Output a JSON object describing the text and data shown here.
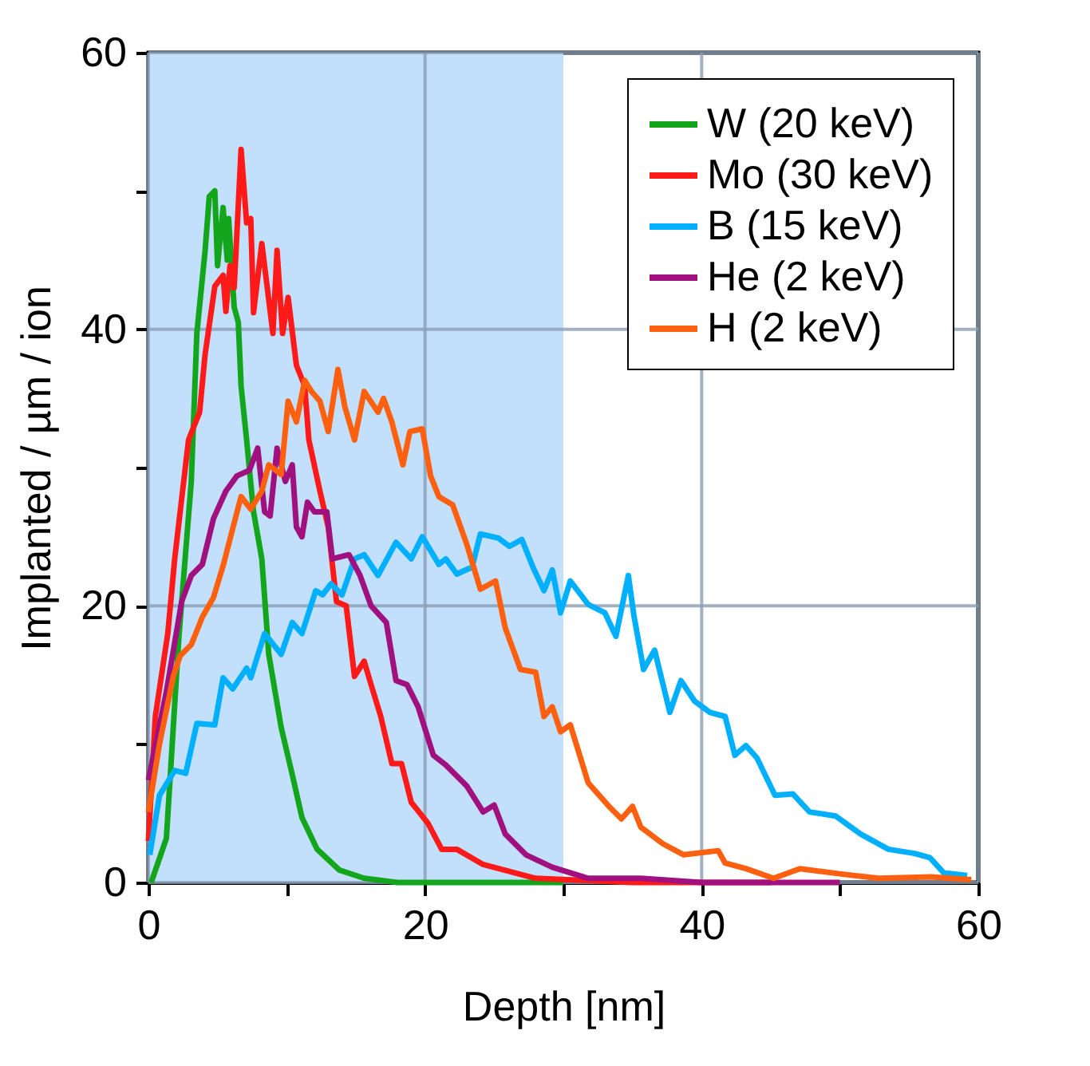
{
  "chart_data": {
    "type": "line",
    "xlabel": "Depth [nm]",
    "ylabel": "Implanted / µm / ion",
    "xlim": [
      0,
      60
    ],
    "ylim": [
      0,
      60
    ],
    "xticks": [
      0,
      {
        "value": 10,
        "label": null
      },
      20,
      {
        "value": 30,
        "label": null
      },
      40,
      {
        "value": 50,
        "label": null
      },
      60
    ],
    "yticks": [
      0,
      {
        "value": 10,
        "label": null
      },
      20,
      {
        "value": 30,
        "label": null
      },
      40,
      {
        "value": 50,
        "label": null
      },
      60
    ],
    "grid": true,
    "legend": "top right",
    "line_style": "solid",
    "marker": "none",
    "bands": [
      {
        "axis": "x",
        "from": 0,
        "to": 30,
        "label": null,
        "color": "#c2e0fc"
      }
    ],
    "series": [
      {
        "name": "W (20 keV)",
        "color": "#13a61c",
        "x": [
          0.2,
          1.3,
          2.2,
          3.1,
          3.5,
          4.1,
          4.4,
          4.8,
          5.0,
          5.4,
          5.7,
          5.8,
          6.2,
          6.5,
          6.7,
          7.1,
          7.6,
          8.2,
          8.7,
          9.6,
          10.4,
          11.1,
          12.2,
          13.8,
          15.6,
          18,
          22,
          30
        ],
        "values": [
          0,
          3.2,
          17.7,
          29,
          39.7,
          45.7,
          49.6,
          50,
          44.6,
          48.8,
          45,
          48,
          41.6,
          40.5,
          35.9,
          32,
          26.8,
          23.4,
          16.5,
          11.2,
          7.8,
          4.7,
          2.4,
          0.9,
          0.3,
          0,
          0,
          0
        ]
      },
      {
        "name": "Mo (30 keV)",
        "color": "#ff1a1a",
        "x": [
          0,
          0.5,
          1.4,
          1.9,
          2.9,
          3.7,
          4.1,
          4.8,
          5.4,
          5.6,
          5.9,
          6.2,
          6.7,
          7.1,
          7.4,
          7.6,
          8.2,
          9,
          9.3,
          9.7,
          10.1,
          10.7,
          11.3,
          11.6,
          12.4,
          13,
          13.6,
          14.3,
          14.9,
          15.6,
          16.1,
          16.8,
          17.6,
          18.3,
          19,
          20.2,
          21.2,
          22.3,
          24.2,
          28,
          35,
          45
        ],
        "values": [
          3,
          12,
          18,
          23.4,
          32,
          34,
          38.2,
          43.1,
          43.9,
          41.3,
          44.6,
          43,
          53,
          47.7,
          48,
          41.2,
          46.2,
          39.7,
          45.7,
          39.7,
          42.3,
          37.4,
          35.9,
          32,
          28.3,
          25.7,
          20.3,
          20,
          14.9,
          16,
          14.3,
          12,
          8.6,
          8.6,
          5.8,
          4.3,
          2.4,
          2.4,
          1.3,
          0.3,
          0,
          0
        ]
      },
      {
        "name": "B (15 keV)",
        "color": "#00b0ff",
        "x": [
          0.1,
          0.8,
          1.9,
          2.7,
          3.5,
          4.8,
          5.4,
          6.1,
          7.1,
          7.4,
          8.4,
          9.6,
          10.4,
          11.1,
          12.1,
          12.6,
          13.2,
          14,
          14.9,
          15.6,
          16.6,
          17.9,
          19,
          19.8,
          21,
          21.5,
          22.3,
          23.4,
          24,
          25.3,
          26.1,
          27,
          27.8,
          28.6,
          29.2,
          29.8,
          30.5,
          31.8,
          33,
          33.8,
          34.7,
          35.1,
          35.8,
          36.6,
          37.7,
          38.5,
          39.5,
          40.6,
          41.7,
          42.4,
          43.2,
          44,
          45.3,
          46.6,
          47.8,
          49.7,
          51.5,
          53.5,
          55.4,
          56.5,
          57.5,
          59.2
        ],
        "values": [
          2,
          6.3,
          8.1,
          7.9,
          11.5,
          11.4,
          14.8,
          14,
          15.5,
          14.8,
          18,
          16.5,
          18.8,
          18,
          21.1,
          20.8,
          21.6,
          20.8,
          23.4,
          23.7,
          22.2,
          24.6,
          23.4,
          25,
          23,
          23.4,
          22.3,
          22.8,
          25.2,
          24.9,
          24.3,
          24.8,
          22.8,
          21.1,
          22.6,
          19.5,
          21.8,
          20.1,
          19.5,
          17.8,
          22.2,
          19.3,
          15.4,
          16.8,
          12.3,
          14.6,
          13.1,
          12.3,
          12,
          9.2,
          9.9,
          9,
          6.3,
          6.4,
          5.1,
          4.8,
          3.5,
          2.4,
          2.1,
          1.8,
          0.7,
          0.5
        ]
      },
      {
        "name": "He (2 keV)",
        "color": "#a0107f",
        "x": [
          0,
          1.3,
          2.4,
          3.1,
          3.9,
          4.7,
          5.6,
          6.4,
          7.3,
          7.9,
          8.4,
          8.8,
          9.3,
          9.9,
          10.4,
          10.7,
          11.1,
          11.5,
          12,
          12.9,
          13.3,
          14.5,
          15.3,
          16.1,
          17.2,
          17.9,
          18.7,
          19.5,
          20.6,
          21.5,
          23,
          24.2,
          25,
          25.8,
          27.3,
          29.2,
          31.8,
          35.6,
          40,
          50
        ],
        "values": [
          7.4,
          13.8,
          20.3,
          22.2,
          23,
          26.3,
          28.3,
          29.4,
          29.8,
          31.4,
          26.8,
          26.5,
          31.4,
          29,
          30.2,
          25.7,
          25,
          27.5,
          26.8,
          26.8,
          23.4,
          23.7,
          22.2,
          20,
          18.8,
          14.6,
          14.3,
          12.7,
          9.2,
          8.5,
          7,
          5.1,
          5.6,
          3.5,
          2,
          1.1,
          0.3,
          0.3,
          0,
          0
        ]
      },
      {
        "name": "H (2 keV)",
        "color": "#ff6010",
        "x": [
          0,
          0.8,
          1.8,
          2.3,
          3.1,
          3.9,
          4.7,
          5.4,
          6.2,
          6.7,
          7.4,
          8.2,
          8.7,
          9.6,
          10.1,
          10.7,
          11.3,
          11.8,
          12.4,
          13,
          13.7,
          14.2,
          14.9,
          15.6,
          16.6,
          17,
          17.6,
          18.4,
          18.9,
          19.8,
          20.4,
          21,
          22,
          23,
          24,
          25.1,
          25.8,
          26.9,
          28,
          28.6,
          29.2,
          29.8,
          30.5,
          31.8,
          33.3,
          34.2,
          35,
          35.6,
          37.2,
          38.7,
          41.2,
          41.7,
          43.2,
          45.2,
          47.1,
          50.2,
          52.8,
          56.6,
          59.5
        ],
        "values": [
          5.1,
          10,
          14.9,
          16.4,
          17.2,
          19.2,
          20.6,
          22.9,
          26,
          27.9,
          27,
          28.3,
          30.2,
          29.5,
          34.8,
          33.3,
          36.3,
          35.5,
          34.8,
          32.6,
          37.1,
          34.4,
          32,
          35.5,
          34,
          35,
          33.3,
          30.2,
          32.6,
          32.8,
          29.4,
          27.9,
          27.3,
          24.5,
          21.2,
          21.8,
          18.4,
          15.4,
          15.2,
          12,
          12.7,
          10.9,
          11.4,
          7.2,
          5.5,
          4.6,
          5.5,
          4,
          2.8,
          2,
          2.3,
          1.4,
          1,
          0.3,
          1,
          0.6,
          0.3,
          0.4,
          0.2
        ]
      }
    ]
  }
}
